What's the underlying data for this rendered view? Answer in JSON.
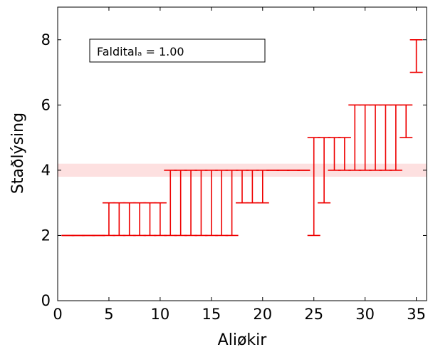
{
  "chart_data": {
    "type": "error-bar",
    "title": "",
    "xlabel": "Aliøkir",
    "ylabel": "Staðlýsing",
    "xlim": [
      0,
      36
    ],
    "ylim": [
      0,
      9
    ],
    "xticks": [
      0,
      5,
      10,
      15,
      20,
      25,
      30,
      35
    ],
    "yticks": [
      0,
      2,
      4,
      6,
      8
    ],
    "grid": false,
    "annotation": "Falditalₐ = 1.00",
    "reference_band": {
      "center": 4.0,
      "low": 3.8,
      "high": 4.2,
      "color": "#fde0e0"
    },
    "series_color": "#ee0000",
    "points": [
      {
        "x": 1,
        "low": 2,
        "high": 2
      },
      {
        "x": 2,
        "low": 2,
        "high": 2
      },
      {
        "x": 3,
        "low": 2,
        "high": 2
      },
      {
        "x": 4,
        "low": 2,
        "high": 2
      },
      {
        "x": 5,
        "low": 2,
        "high": 3
      },
      {
        "x": 6,
        "low": 2,
        "high": 3
      },
      {
        "x": 7,
        "low": 2,
        "high": 3
      },
      {
        "x": 8,
        "low": 2,
        "high": 3
      },
      {
        "x": 9,
        "low": 2,
        "high": 3
      },
      {
        "x": 10,
        "low": 2,
        "high": 3
      },
      {
        "x": 11,
        "low": 2,
        "high": 4
      },
      {
        "x": 12,
        "low": 2,
        "high": 4
      },
      {
        "x": 13,
        "low": 2,
        "high": 4
      },
      {
        "x": 14,
        "low": 2,
        "high": 4
      },
      {
        "x": 15,
        "low": 2,
        "high": 4
      },
      {
        "x": 16,
        "low": 2,
        "high": 4
      },
      {
        "x": 17,
        "low": 2,
        "high": 4
      },
      {
        "x": 18,
        "low": 3,
        "high": 4
      },
      {
        "x": 19,
        "low": 3,
        "high": 4
      },
      {
        "x": 20,
        "low": 3,
        "high": 4
      },
      {
        "x": 21,
        "low": 4,
        "high": 4
      },
      {
        "x": 22,
        "low": 4,
        "high": 4
      },
      {
        "x": 23,
        "low": 4,
        "high": 4
      },
      {
        "x": 24,
        "low": 4,
        "high": 4
      },
      {
        "x": 25,
        "low": 2,
        "high": 5
      },
      {
        "x": 26,
        "low": 3,
        "high": 5
      },
      {
        "x": 27,
        "low": 4,
        "high": 5
      },
      {
        "x": 28,
        "low": 4,
        "high": 5
      },
      {
        "x": 29,
        "low": 4,
        "high": 6
      },
      {
        "x": 30,
        "low": 4,
        "high": 6
      },
      {
        "x": 31,
        "low": 4,
        "high": 6
      },
      {
        "x": 32,
        "low": 4,
        "high": 6
      },
      {
        "x": 33,
        "low": 4,
        "high": 6
      },
      {
        "x": 34,
        "low": 5,
        "high": 6
      },
      {
        "x": 35,
        "low": 7,
        "high": 8
      }
    ]
  }
}
